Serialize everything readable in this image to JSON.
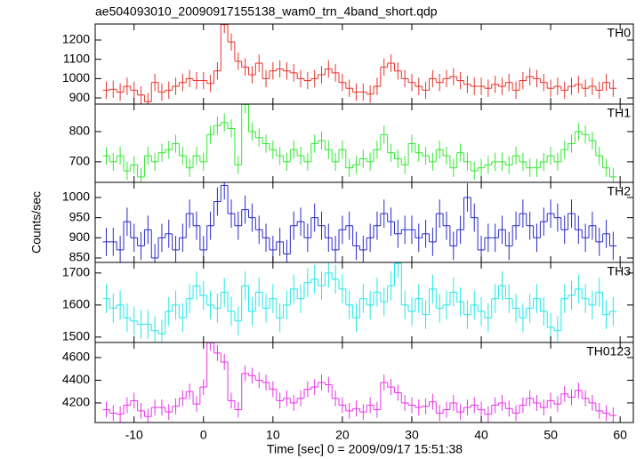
{
  "chart_data": [
    {
      "type": "step",
      "title": "ae504093010_20090917155138_wam0_trn_4band_short.qdp",
      "ylabel": "Counts/sec",
      "x": [
        -14,
        -13,
        -12,
        -11,
        -10,
        -9,
        -8,
        -7,
        -6,
        -5,
        -4,
        -3,
        -2,
        -1,
        0,
        1,
        2,
        3,
        4,
        5,
        6,
        7,
        8,
        9,
        10,
        11,
        12,
        13,
        14,
        15,
        16,
        17,
        18,
        19,
        20,
        21,
        22,
        23,
        24,
        25,
        26,
        27,
        28,
        29,
        30,
        31,
        32,
        33,
        34,
        35,
        36,
        37,
        38,
        39,
        40,
        41,
        42,
        43,
        44,
        45,
        46,
        47,
        48,
        49,
        50,
        51,
        52,
        53,
        54,
        55,
        56,
        57,
        58,
        59
      ],
      "xlim": [
        -15.6,
        61.9
      ],
      "ylim": [
        868,
        1283
      ],
      "yticks": [
        900,
        1000,
        1100,
        1200
      ],
      "series": [
        {
          "name": "TH0",
          "color": "#e8332b",
          "error": 45,
          "values": [
            940,
            945,
            930,
            960,
            940,
            915,
            880,
            980,
            930,
            940,
            960,
            980,
            1000,
            990,
            990,
            975,
            1040,
            1280,
            1190,
            1090,
            1060,
            1020,
            1080,
            1000,
            1040,
            1050,
            1040,
            1030,
            1000,
            990,
            1000,
            1020,
            1050,
            1030,
            980,
            950,
            930,
            930,
            920,
            960,
            1060,
            1080,
            1040,
            1000,
            980,
            960,
            940,
            1000,
            980,
            1000,
            1010,
            990,
            970,
            960,
            960,
            950,
            970,
            960,
            980,
            940,
            990,
            1010,
            1000,
            980,
            950,
            960,
            940,
            960,
            970,
            950,
            960,
            940,
            980,
            950
          ]
        }
      ]
    },
    {
      "type": "step",
      "x": [
        -14,
        -13,
        -12,
        -11,
        -10,
        -9,
        -8,
        -7,
        -6,
        -5,
        -4,
        -3,
        -2,
        -1,
        0,
        1,
        2,
        3,
        4,
        5,
        6,
        7,
        8,
        9,
        10,
        11,
        12,
        13,
        14,
        15,
        16,
        17,
        18,
        19,
        20,
        21,
        22,
        23,
        24,
        25,
        26,
        27,
        28,
        29,
        30,
        31,
        32,
        33,
        34,
        35,
        36,
        37,
        38,
        39,
        40,
        41,
        42,
        43,
        44,
        45,
        46,
        47,
        48,
        49,
        50,
        51,
        52,
        53,
        54,
        55,
        56,
        57,
        58,
        59
      ],
      "xlim": [
        -15.6,
        61.9
      ],
      "ylim": [
        632,
        891
      ],
      "yticks": [
        700,
        800
      ],
      "series": [
        {
          "name": "TH1",
          "color": "#33e833",
          "error": 30,
          "values": [
            720,
            700,
            720,
            670,
            690,
            650,
            720,
            700,
            730,
            740,
            760,
            720,
            680,
            720,
            700,
            790,
            820,
            830,
            810,
            690,
            890,
            800,
            780,
            760,
            740,
            720,
            700,
            740,
            720,
            700,
            760,
            770,
            740,
            700,
            740,
            680,
            690,
            710,
            700,
            740,
            790,
            730,
            710,
            690,
            760,
            730,
            720,
            700,
            740,
            720,
            680,
            730,
            700,
            670,
            680,
            690,
            700,
            700,
            690,
            720,
            700,
            680,
            680,
            700,
            720,
            700,
            740,
            760,
            800,
            790,
            770,
            720,
            680,
            650
          ]
        }
      ]
    },
    {
      "type": "step",
      "x": [
        -14,
        -13,
        -12,
        -11,
        -10,
        -9,
        -8,
        -7,
        -6,
        -5,
        -4,
        -3,
        -2,
        -1,
        0,
        1,
        2,
        3,
        4,
        5,
        6,
        7,
        8,
        9,
        10,
        11,
        12,
        13,
        14,
        15,
        16,
        17,
        18,
        19,
        20,
        21,
        22,
        23,
        24,
        25,
        26,
        27,
        28,
        29,
        30,
        31,
        32,
        33,
        34,
        35,
        36,
        37,
        38,
        39,
        40,
        41,
        42,
        43,
        44,
        45,
        46,
        47,
        48,
        49,
        50,
        51,
        52,
        53,
        54,
        55,
        56,
        57,
        58,
        59
      ],
      "xlim": [
        -15.6,
        61.9
      ],
      "ylim": [
        839,
        1037.5
      ],
      "yticks": [
        850,
        900,
        950,
        1000
      ],
      "series": [
        {
          "name": "TH2",
          "color": "#2a2acc",
          "error": 35,
          "values": [
            890,
            890,
            870,
            940,
            900,
            880,
            920,
            850,
            900,
            910,
            870,
            900,
            960,
            930,
            870,
            930,
            990,
            1030,
            960,
            930,
            970,
            950,
            920,
            900,
            870,
            890,
            860,
            930,
            940,
            900,
            950,
            930,
            900,
            870,
            920,
            930,
            880,
            870,
            900,
            930,
            960,
            940,
            910,
            920,
            920,
            900,
            910,
            890,
            960,
            930,
            880,
            920,
            1000,
            950,
            870,
            900,
            900,
            920,
            880,
            930,
            960,
            930,
            900,
            940,
            960,
            950,
            920,
            960,
            920,
            900,
            930,
            890,
            910,
            880
          ]
        }
      ]
    },
    {
      "type": "step",
      "x": [
        -14,
        -13,
        -12,
        -11,
        -10,
        -9,
        -8,
        -7,
        -6,
        -5,
        -4,
        -3,
        -2,
        -1,
        0,
        1,
        2,
        3,
        4,
        5,
        6,
        7,
        8,
        9,
        10,
        11,
        12,
        13,
        14,
        15,
        16,
        17,
        18,
        19,
        20,
        21,
        22,
        23,
        24,
        25,
        26,
        27,
        28,
        29,
        30,
        31,
        32,
        33,
        34,
        35,
        36,
        37,
        38,
        39,
        40,
        41,
        42,
        43,
        44,
        45,
        46,
        47,
        48,
        49,
        50,
        51,
        52,
        53,
        54,
        55,
        56,
        57,
        58,
        59
      ],
      "xlim": [
        -15.6,
        61.9
      ],
      "ylim": [
        1483,
        1733
      ],
      "yticks": [
        1500,
        1600,
        1700
      ],
      "series": [
        {
          "name": "TH3",
          "color": "#22e8e8",
          "error": 45,
          "values": [
            1620,
            1590,
            1600,
            1560,
            1550,
            1540,
            1540,
            1520,
            1510,
            1580,
            1600,
            1560,
            1620,
            1660,
            1630,
            1600,
            1590,
            1640,
            1580,
            1550,
            1660,
            1580,
            1640,
            1590,
            1620,
            1560,
            1600,
            1650,
            1620,
            1670,
            1680,
            1660,
            1700,
            1680,
            1650,
            1600,
            1560,
            1620,
            1600,
            1640,
            1610,
            1660,
            1730,
            1600,
            1580,
            1620,
            1570,
            1650,
            1590,
            1600,
            1640,
            1610,
            1570,
            1600,
            1580,
            1560,
            1620,
            1660,
            1620,
            1590,
            1560,
            1590,
            1620,
            1580,
            1530,
            1520,
            1620,
            1630,
            1650,
            1620,
            1600,
            1640,
            1570,
            1580
          ]
        }
      ]
    },
    {
      "type": "step",
      "xlabel": "Time [sec] 0 = 2009/09/17 15:51:38",
      "x": [
        -14,
        -13,
        -12,
        -11,
        -10,
        -9,
        -8,
        -7,
        -6,
        -5,
        -4,
        -3,
        -2,
        -1,
        0,
        1,
        2,
        3,
        4,
        5,
        6,
        7,
        8,
        9,
        10,
        11,
        12,
        13,
        14,
        15,
        16,
        17,
        18,
        19,
        20,
        21,
        22,
        23,
        24,
        25,
        26,
        27,
        28,
        29,
        30,
        31,
        32,
        33,
        34,
        35,
        36,
        37,
        38,
        39,
        40,
        41,
        42,
        43,
        44,
        45,
        46,
        47,
        48,
        49,
        50,
        51,
        52,
        53,
        54,
        55,
        56,
        57,
        58,
        59
      ],
      "xlim": [
        -15.6,
        61.9
      ],
      "xticks": [
        -10,
        0,
        10,
        20,
        30,
        40,
        50,
        60
      ],
      "ylim": [
        4027,
        4733
      ],
      "yticks": [
        4200,
        4400,
        4600
      ],
      "series": [
        {
          "name": "TH0123",
          "color": "#e833e8",
          "error": 70,
          "values": [
            4140,
            4110,
            4100,
            4180,
            4220,
            4130,
            4080,
            4160,
            4160,
            4120,
            4170,
            4240,
            4300,
            4190,
            4340,
            4730,
            4640,
            4560,
            4220,
            4140,
            4460,
            4440,
            4400,
            4380,
            4320,
            4220,
            4240,
            4200,
            4240,
            4320,
            4340,
            4380,
            4360,
            4240,
            4180,
            4130,
            4150,
            4120,
            4180,
            4140,
            4380,
            4340,
            4290,
            4200,
            4180,
            4160,
            4170,
            4210,
            4110,
            4140,
            4200,
            4120,
            4160,
            4180,
            4140,
            4100,
            4180,
            4200,
            4150,
            4110,
            4180,
            4240,
            4200,
            4160,
            4220,
            4190,
            4280,
            4250,
            4310,
            4240,
            4200,
            4130,
            4110,
            4090
          ]
        }
      ]
    }
  ]
}
